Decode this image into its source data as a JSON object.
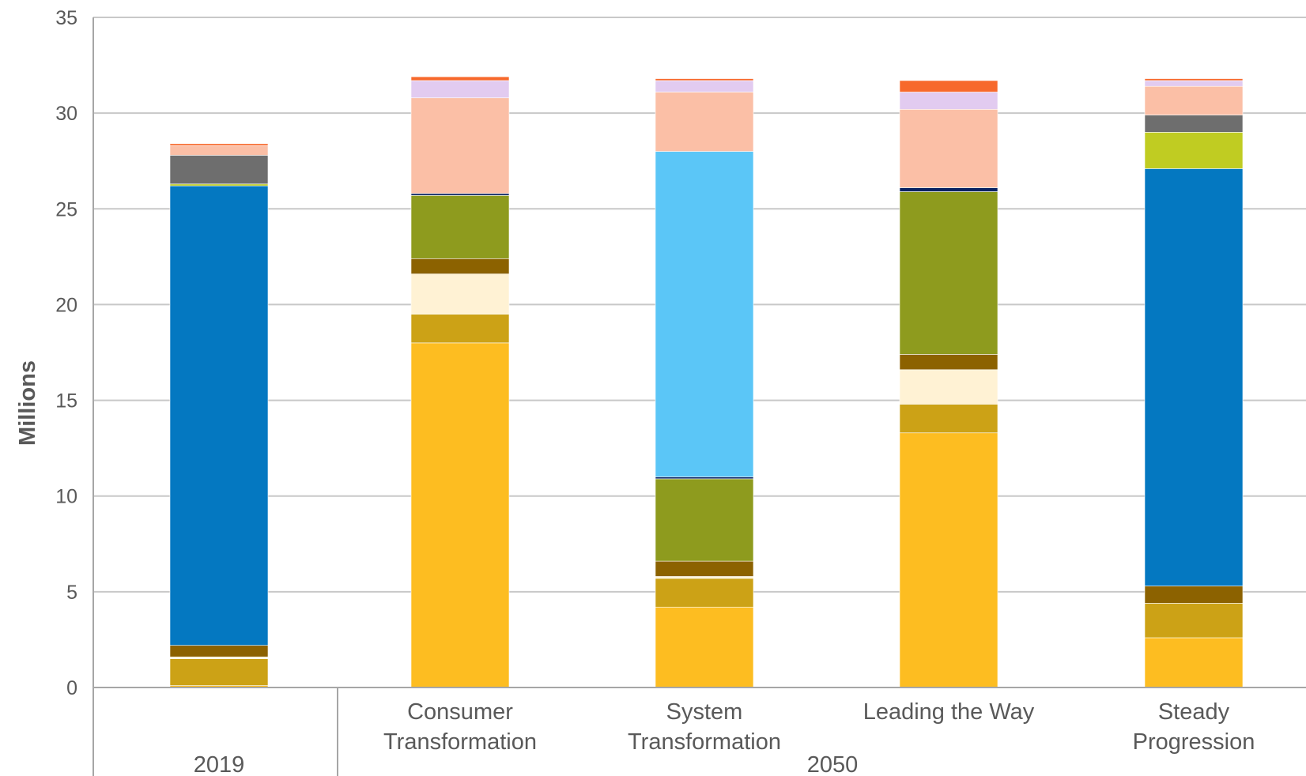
{
  "chart_data": {
    "type": "bar",
    "stacked": true,
    "ylabel": "Millions",
    "ylim": [
      0,
      35
    ],
    "yticks": [
      0,
      5,
      10,
      15,
      20,
      25,
      30,
      35
    ],
    "grid": true,
    "legend": "none",
    "groups": [
      {
        "label": "2019",
        "categories": [
          "2019"
        ]
      },
      {
        "label": "2050",
        "categories": [
          "Consumer Transformation",
          "System Transformation",
          "Leading the Way",
          "Steady Progression"
        ]
      }
    ],
    "categories": [
      {
        "label": "",
        "line1": "",
        "line2": ""
      },
      {
        "label": "Consumer Transformation",
        "line1": "Consumer",
        "line2": "Transformation"
      },
      {
        "label": "System Transformation",
        "line1": "System",
        "line2": "Transformation"
      },
      {
        "label": "Leading the Way",
        "line1": "Leading the Way",
        "line2": ""
      },
      {
        "label": "Steady Progression",
        "line1": "Steady",
        "line2": "Progression"
      }
    ],
    "series": [
      {
        "color": "#FDBD21",
        "values": [
          0.1,
          18.0,
          4.2,
          13.3,
          2.6
        ]
      },
      {
        "color": "#CCA216",
        "values": [
          1.4,
          1.5,
          1.5,
          1.5,
          1.8
        ]
      },
      {
        "color": "#FFF2D4",
        "values": [
          0.1,
          2.1,
          0.1,
          1.8,
          0.0
        ]
      },
      {
        "color": "#8C6200",
        "values": [
          0.6,
          0.8,
          0.8,
          0.8,
          0.9
        ]
      },
      {
        "color": "#8E9B1E",
        "values": [
          0.0,
          3.3,
          4.3,
          8.5,
          0.0
        ]
      },
      {
        "color": "#0A2463",
        "values": [
          0.0,
          0.1,
          0.1,
          0.2,
          0.0
        ]
      },
      {
        "color": "#5BC6F7",
        "values": [
          0.0,
          0.0,
          17.0,
          0.0,
          0.0
        ]
      },
      {
        "color": "#0478C1",
        "values": [
          24.0,
          0.0,
          0.0,
          0.0,
          21.8
        ]
      },
      {
        "color": "#C0CC22",
        "values": [
          0.1,
          0.0,
          0.0,
          0.0,
          1.9
        ]
      },
      {
        "color": "#6E6E6E",
        "values": [
          1.5,
          0.0,
          0.0,
          0.0,
          0.9
        ]
      },
      {
        "color": "#FBBFA6",
        "values": [
          0.5,
          5.0,
          3.1,
          4.1,
          1.5
        ]
      },
      {
        "color": "#E2CBF0",
        "values": [
          0.0,
          0.9,
          0.6,
          0.9,
          0.3
        ]
      },
      {
        "color": "#F7692C",
        "values": [
          0.1,
          0.2,
          0.1,
          0.6,
          0.1
        ]
      }
    ]
  }
}
